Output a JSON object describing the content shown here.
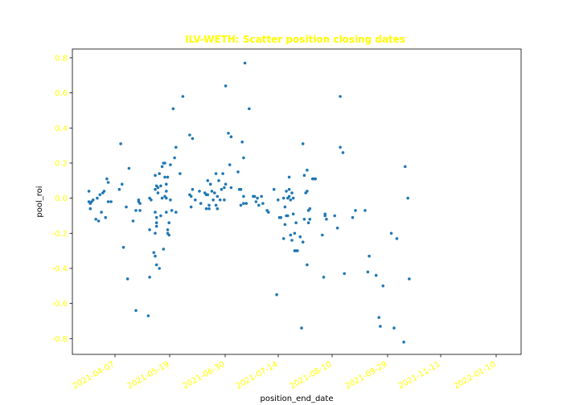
{
  "chart_data": {
    "type": "scatter",
    "title": "ILV-WETH: Scatter position closing dates",
    "xlabel": "position_end_date",
    "ylabel": "pool_roi",
    "x_type": "date",
    "xlim": [
      "2021-03-06",
      "2022-01-25"
    ],
    "ylim": [
      -0.89,
      0.85
    ],
    "x_ticks": [
      "2021-04-07",
      "2021-05-19",
      "2021-06-30",
      "2021-07-14",
      "2021-08-10",
      "2021-09-29",
      "2021-11-11",
      "2022-01-10"
    ],
    "y_ticks": [
      0.8,
      0.6,
      0.4,
      0.2,
      0.0,
      -0.2,
      -0.4,
      -0.6,
      -0.8
    ],
    "grid": false,
    "colors": {
      "points": "#1f77b4",
      "ticks": "#ffff00",
      "title": "#ffff00"
    },
    "points": [
      {
        "x": "2021-03-18",
        "y": 0.04
      },
      {
        "x": "2021-03-18",
        "y": -0.02
      },
      {
        "x": "2021-03-19",
        "y": -0.03
      },
      {
        "x": "2021-03-19",
        "y": -0.06
      },
      {
        "x": "2021-03-20",
        "y": -0.02
      },
      {
        "x": "2021-03-21",
        "y": -0.01
      },
      {
        "x": "2021-03-23",
        "y": -0.12
      },
      {
        "x": "2021-03-24",
        "y": 0.0
      },
      {
        "x": "2021-03-25",
        "y": -0.13
      },
      {
        "x": "2021-03-26",
        "y": 0.02
      },
      {
        "x": "2021-03-27",
        "y": -0.08
      },
      {
        "x": "2021-03-28",
        "y": 0.03
      },
      {
        "x": "2021-03-29",
        "y": 0.04
      },
      {
        "x": "2021-03-30",
        "y": -0.11
      },
      {
        "x": "2021-03-31",
        "y": 0.11
      },
      {
        "x": "2021-04-01",
        "y": -0.02
      },
      {
        "x": "2021-04-01",
        "y": 0.09
      },
      {
        "x": "2021-04-03",
        "y": -0.02
      },
      {
        "x": "2021-04-09",
        "y": 0.05
      },
      {
        "x": "2021-04-10",
        "y": 0.31
      },
      {
        "x": "2021-04-11",
        "y": 0.08
      },
      {
        "x": "2021-04-12",
        "y": -0.28
      },
      {
        "x": "2021-04-14",
        "y": -0.05
      },
      {
        "x": "2021-04-15",
        "y": -0.46
      },
      {
        "x": "2021-04-16",
        "y": 0.17
      },
      {
        "x": "2021-04-19",
        "y": -0.13
      },
      {
        "x": "2021-04-21",
        "y": -0.07
      },
      {
        "x": "2021-04-21",
        "y": -0.64
      },
      {
        "x": "2021-04-23",
        "y": -0.01
      },
      {
        "x": "2021-04-23",
        "y": -0.02
      },
      {
        "x": "2021-04-24",
        "y": -0.07
      },
      {
        "x": "2021-04-24",
        "y": -0.03
      },
      {
        "x": "2021-04-30",
        "y": -0.67
      },
      {
        "x": "2021-05-01",
        "y": -0.45
      },
      {
        "x": "2021-05-01",
        "y": -0.18
      },
      {
        "x": "2021-05-01",
        "y": 0.0
      },
      {
        "x": "2021-05-02",
        "y": -0.01
      },
      {
        "x": "2021-05-04",
        "y": -0.31
      },
      {
        "x": "2021-05-05",
        "y": -0.33
      },
      {
        "x": "2021-05-05",
        "y": -0.2
      },
      {
        "x": "2021-05-05",
        "y": -0.08
      },
      {
        "x": "2021-05-05",
        "y": 0.05
      },
      {
        "x": "2021-05-05",
        "y": 0.13
      },
      {
        "x": "2021-05-06",
        "y": -0.38
      },
      {
        "x": "2021-05-06",
        "y": -0.16
      },
      {
        "x": "2021-05-06",
        "y": -0.14
      },
      {
        "x": "2021-05-06",
        "y": -0.11
      },
      {
        "x": "2021-05-06",
        "y": 0.07
      },
      {
        "x": "2021-05-07",
        "y": 0.06
      },
      {
        "x": "2021-05-07",
        "y": 0.03
      },
      {
        "x": "2021-05-08",
        "y": 0.14
      },
      {
        "x": "2021-05-08",
        "y": -0.4
      },
      {
        "x": "2021-05-09",
        "y": -0.1
      },
      {
        "x": "2021-05-09",
        "y": 0.07
      },
      {
        "x": "2021-05-10",
        "y": 0.18
      },
      {
        "x": "2021-05-10",
        "y": 0.0
      },
      {
        "x": "2021-05-11",
        "y": -0.29
      },
      {
        "x": "2021-05-11",
        "y": 0.2
      },
      {
        "x": "2021-05-12",
        "y": 0.2
      },
      {
        "x": "2021-05-12",
        "y": 0.12
      },
      {
        "x": "2021-05-12",
        "y": 0.01
      },
      {
        "x": "2021-05-13",
        "y": 0.08
      },
      {
        "x": "2021-05-13",
        "y": 0.04
      },
      {
        "x": "2021-05-13",
        "y": -0.08
      },
      {
        "x": "2021-05-13",
        "y": 0.0
      },
      {
        "x": "2021-05-14",
        "y": 0.12
      },
      {
        "x": "2021-05-14",
        "y": -0.18
      },
      {
        "x": "2021-05-14",
        "y": -0.2
      },
      {
        "x": "2021-05-15",
        "y": -0.21
      },
      {
        "x": "2021-05-15",
        "y": -0.14
      },
      {
        "x": "2021-05-16",
        "y": -0.01
      },
      {
        "x": "2021-05-16",
        "y": 0.19
      },
      {
        "x": "2021-05-17",
        "y": -0.07
      },
      {
        "x": "2021-05-18",
        "y": 0.51
      },
      {
        "x": "2021-05-19",
        "y": 0.23
      },
      {
        "x": "2021-05-20",
        "y": 0.29
      },
      {
        "x": "2021-05-20",
        "y": -0.08
      },
      {
        "x": "2021-05-23",
        "y": 0.14
      },
      {
        "x": "2021-05-25",
        "y": 0.58
      },
      {
        "x": "2021-05-30",
        "y": 0.36
      },
      {
        "x": "2021-05-30",
        "y": 0.02
      },
      {
        "x": "2021-05-31",
        "y": 0.01
      },
      {
        "x": "2021-05-31",
        "y": -0.05
      },
      {
        "x": "2021-06-01",
        "y": 0.34
      },
      {
        "x": "2021-06-01",
        "y": 0.05
      },
      {
        "x": "2021-06-03",
        "y": -0.01
      },
      {
        "x": "2021-06-06",
        "y": 0.04
      },
      {
        "x": "2021-06-07",
        "y": -0.03
      },
      {
        "x": "2021-06-10",
        "y": 0.03
      },
      {
        "x": "2021-06-11",
        "y": -0.06
      },
      {
        "x": "2021-06-11",
        "y": 0.02
      },
      {
        "x": "2021-06-12",
        "y": 0.1
      },
      {
        "x": "2021-06-12",
        "y": 0.02
      },
      {
        "x": "2021-06-13",
        "y": -0.04
      },
      {
        "x": "2021-06-13",
        "y": -0.06
      },
      {
        "x": "2021-06-14",
        "y": 0.08
      },
      {
        "x": "2021-06-15",
        "y": 0.04
      },
      {
        "x": "2021-06-16",
        "y": -0.01
      },
      {
        "x": "2021-06-17",
        "y": 0.03
      },
      {
        "x": "2021-06-18",
        "y": -0.04
      },
      {
        "x": "2021-06-18",
        "y": 0.14
      },
      {
        "x": "2021-06-19",
        "y": 0.01
      },
      {
        "x": "2021-06-19",
        "y": -0.06
      },
      {
        "x": "2021-06-20",
        "y": 0.1
      },
      {
        "x": "2021-06-21",
        "y": -0.01
      },
      {
        "x": "2021-06-22",
        "y": 0.05
      },
      {
        "x": "2021-06-23",
        "y": 0.14
      },
      {
        "x": "2021-06-24",
        "y": -0.01
      },
      {
        "x": "2021-06-24",
        "y": 0.06
      },
      {
        "x": "2021-06-25",
        "y": 0.64
      },
      {
        "x": "2021-06-25",
        "y": 0.08
      },
      {
        "x": "2021-06-27",
        "y": 0.37
      },
      {
        "x": "2021-06-28",
        "y": 0.19
      },
      {
        "x": "2021-06-29",
        "y": 0.06
      },
      {
        "x": "2021-06-29",
        "y": 0.35
      },
      {
        "x": "2021-07-04",
        "y": 0.15
      },
      {
        "x": "2021-07-05",
        "y": 0.05
      },
      {
        "x": "2021-07-06",
        "y": 0.05
      },
      {
        "x": "2021-07-06",
        "y": -0.04
      },
      {
        "x": "2021-07-07",
        "y": 0.32
      },
      {
        "x": "2021-07-08",
        "y": -0.03
      },
      {
        "x": "2021-07-08",
        "y": 0.01
      },
      {
        "x": "2021-07-08",
        "y": 0.23
      },
      {
        "x": "2021-07-09",
        "y": 0.77
      },
      {
        "x": "2021-07-10",
        "y": -0.03
      },
      {
        "x": "2021-07-12",
        "y": 0.51
      },
      {
        "x": "2021-07-15",
        "y": 0.01
      },
      {
        "x": "2021-07-16",
        "y": 0.01
      },
      {
        "x": "2021-07-17",
        "y": -0.02
      },
      {
        "x": "2021-07-18",
        "y": 0.0
      },
      {
        "x": "2021-07-19",
        "y": -0.04
      },
      {
        "x": "2021-07-21",
        "y": 0.01
      },
      {
        "x": "2021-07-22",
        "y": -0.03
      },
      {
        "x": "2021-07-25",
        "y": -0.07
      },
      {
        "x": "2021-07-26",
        "y": -0.08
      },
      {
        "x": "2021-07-30",
        "y": 0.05
      },
      {
        "x": "2021-08-01",
        "y": -0.55
      },
      {
        "x": "2021-08-02",
        "y": -0.01
      },
      {
        "x": "2021-08-03",
        "y": -0.11
      },
      {
        "x": "2021-08-04",
        "y": -0.11
      },
      {
        "x": "2021-08-06",
        "y": -0.23
      },
      {
        "x": "2021-08-06",
        "y": 0.0
      },
      {
        "x": "2021-08-07",
        "y": -0.05
      },
      {
        "x": "2021-08-07",
        "y": -0.15
      },
      {
        "x": "2021-08-08",
        "y": 0.04
      },
      {
        "x": "2021-08-08",
        "y": -0.1
      },
      {
        "x": "2021-08-09",
        "y": 0.0
      },
      {
        "x": "2021-08-09",
        "y": -0.1
      },
      {
        "x": "2021-08-10",
        "y": 0.01
      },
      {
        "x": "2021-08-10",
        "y": 0.05
      },
      {
        "x": "2021-08-10",
        "y": 0.12
      },
      {
        "x": "2021-08-11",
        "y": -0.21
      },
      {
        "x": "2021-08-11",
        "y": -0.01
      },
      {
        "x": "2021-08-12",
        "y": -0.24
      },
      {
        "x": "2021-08-12",
        "y": 0.03
      },
      {
        "x": "2021-08-13",
        "y": 0.0
      },
      {
        "x": "2021-08-13",
        "y": -0.09
      },
      {
        "x": "2021-08-14",
        "y": -0.2
      },
      {
        "x": "2021-08-14",
        "y": -0.3
      },
      {
        "x": "2021-08-15",
        "y": -0.14
      },
      {
        "x": "2021-08-15",
        "y": -0.3
      },
      {
        "x": "2021-08-16",
        "y": -0.3
      },
      {
        "x": "2021-08-18",
        "y": -0.22
      },
      {
        "x": "2021-08-19",
        "y": -0.74
      },
      {
        "x": "2021-08-20",
        "y": 0.31
      },
      {
        "x": "2021-08-20",
        "y": -0.25
      },
      {
        "x": "2021-08-21",
        "y": 0.13
      },
      {
        "x": "2021-08-21",
        "y": -0.12
      },
      {
        "x": "2021-08-22",
        "y": 0.03
      },
      {
        "x": "2021-08-23",
        "y": 0.16
      },
      {
        "x": "2021-08-23",
        "y": 0.04
      },
      {
        "x": "2021-08-23",
        "y": -0.38
      },
      {
        "x": "2021-08-24",
        "y": -0.07
      },
      {
        "x": "2021-08-24",
        "y": -0.14
      },
      {
        "x": "2021-08-25",
        "y": -0.06
      },
      {
        "x": "2021-08-25",
        "y": -0.12
      },
      {
        "x": "2021-08-27",
        "y": 0.11
      },
      {
        "x": "2021-08-28",
        "y": 0.11
      },
      {
        "x": "2021-08-29",
        "y": 0.11
      },
      {
        "x": "2021-09-03",
        "y": -0.21
      },
      {
        "x": "2021-09-04",
        "y": -0.45
      },
      {
        "x": "2021-09-05",
        "y": -0.09
      },
      {
        "x": "2021-09-05",
        "y": -0.1
      },
      {
        "x": "2021-09-06",
        "y": -0.12
      },
      {
        "x": "2021-09-12",
        "y": -0.1
      },
      {
        "x": "2021-09-14",
        "y": -0.17
      },
      {
        "x": "2021-09-16",
        "y": 0.29
      },
      {
        "x": "2021-09-16",
        "y": 0.58
      },
      {
        "x": "2021-09-18",
        "y": 0.26
      },
      {
        "x": "2021-09-19",
        "y": -0.43
      },
      {
        "x": "2021-09-25",
        "y": -0.11
      },
      {
        "x": "2021-09-27",
        "y": -0.07
      },
      {
        "x": "2021-10-04",
        "y": -0.07
      },
      {
        "x": "2021-10-06",
        "y": -0.42
      },
      {
        "x": "2021-10-07",
        "y": -0.33
      },
      {
        "x": "2021-10-12",
        "y": -0.44
      },
      {
        "x": "2021-10-14",
        "y": -0.68
      },
      {
        "x": "2021-10-15",
        "y": -0.73
      },
      {
        "x": "2021-10-17",
        "y": -0.5
      },
      {
        "x": "2021-10-23",
        "y": -0.2
      },
      {
        "x": "2021-10-25",
        "y": -0.74
      },
      {
        "x": "2021-10-27",
        "y": -0.23
      },
      {
        "x": "2021-11-01",
        "y": -0.82
      },
      {
        "x": "2021-11-02",
        "y": 0.18
      },
      {
        "x": "2021-11-04",
        "y": 0.0
      },
      {
        "x": "2021-11-05",
        "y": -0.46
      }
    ]
  }
}
